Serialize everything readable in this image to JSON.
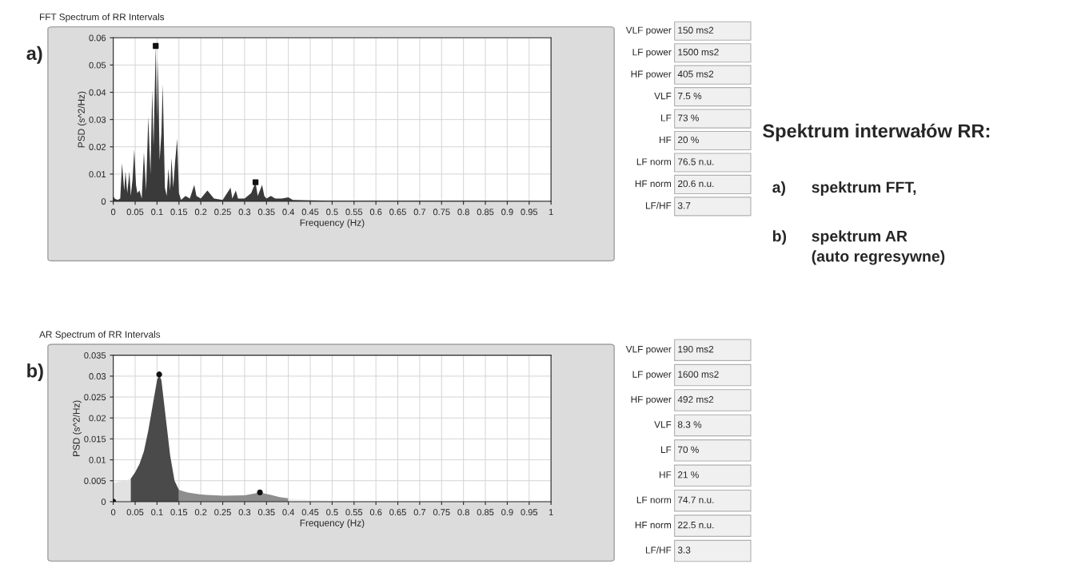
{
  "chart_data": [
    {
      "type": "area",
      "title": "FFT Spectrum of RR Intervals",
      "xlabel": "Frequency (Hz)",
      "ylabel": "PSD (s^2/Hz)",
      "annotations": [
        "a)"
      ],
      "xlim": [
        0,
        1
      ],
      "ylim": [
        0,
        0.06
      ],
      "grid": true,
      "xticks": [
        0,
        0.05,
        0.1,
        0.15,
        0.2,
        0.25,
        0.3,
        0.35,
        0.4,
        0.45,
        0.5,
        0.55,
        0.6,
        0.65,
        0.7,
        0.75,
        0.8,
        0.85,
        0.9,
        0.95,
        1
      ],
      "yticks": [
        0,
        0.01,
        0.02,
        0.03,
        0.04,
        0.05,
        0.06
      ],
      "series": [
        {
          "type": "area",
          "color": "#3a3a3a",
          "x": [
            0,
            0.003,
            0.01,
            0.016,
            0.02,
            0.025,
            0.028,
            0.032,
            0.037,
            0.04,
            0.044,
            0.048,
            0.052,
            0.055,
            0.06,
            0.065,
            0.07,
            0.075,
            0.08,
            0.085,
            0.089,
            0.092,
            0.097,
            0.1,
            0.102,
            0.106,
            0.11,
            0.113,
            0.118,
            0.122,
            0.126,
            0.13,
            0.133,
            0.137,
            0.141,
            0.146,
            0.15,
            0.155,
            0.165,
            0.175,
            0.185,
            0.19,
            0.2,
            0.215,
            0.22,
            0.23,
            0.25,
            0.268,
            0.272,
            0.28,
            0.285,
            0.3,
            0.315,
            0.325,
            0.33,
            0.34,
            0.345,
            0.35,
            0.36,
            0.37,
            0.385,
            0.4,
            0.41,
            0.45,
            0.5,
            0.6,
            0.8,
            1
          ],
          "values": [
            0.002,
            0.001,
            0.0005,
            0.001,
            0.014,
            0.004,
            0.011,
            0.003,
            0.011,
            0.002,
            0.008,
            0.019,
            0.006,
            0.003,
            0.004,
            0.001,
            0.018,
            0.004,
            0.031,
            0.01,
            0.041,
            0.02,
            0.057,
            0.03,
            0.052,
            0.015,
            0.025,
            0.043,
            0.005,
            0.002,
            0.012,
            0.004,
            0.016,
            0.005,
            0.014,
            0.023,
            0.003,
            0.0005,
            0.002,
            0.001,
            0.006,
            0.002,
            0.001,
            0.004,
            0.003,
            0.001,
            0.0005,
            0.005,
            0.001,
            0.004,
            0.001,
            0.001,
            0.003,
            0.007,
            0.002,
            0.006,
            0.002,
            0.001,
            0.002,
            0.001,
            0.001,
            0.0015,
            0.0005,
            0.0004,
            0.0002,
            0.0002,
            0.0002,
            0.0001
          ]
        },
        {
          "type": "scatter",
          "color": "#111111",
          "marker": "square",
          "x": [
            0.097,
            0.325
          ],
          "values": [
            0.057,
            0.007
          ]
        }
      ]
    },
    {
      "type": "other",
      "annotations": [
        "VLF power",
        "150 ms2",
        "LF power",
        "1500 ms2",
        "HF power",
        "405 ms2",
        "VLF",
        "7.5 %",
        "LF",
        "73 %",
        "HF",
        "20 %",
        "LF norm",
        "76.5 n.u.",
        "HF norm",
        "20.6 n.u.",
        "LF/HF",
        "3.7"
      ]
    },
    {
      "type": "area",
      "title": "AR Spectrum of RR Intervals",
      "xlabel": "Frequency (Hz)",
      "ylabel": "PSD (s^2/Hz)",
      "annotations": [
        "b)"
      ],
      "xlim": [
        0,
        1
      ],
      "ylim": [
        0,
        0.035
      ],
      "grid": true,
      "xticks": [
        0,
        0.05,
        0.1,
        0.15,
        0.2,
        0.25,
        0.3,
        0.35,
        0.4,
        0.45,
        0.5,
        0.55,
        0.6,
        0.65,
        0.7,
        0.75,
        0.8,
        0.85,
        0.9,
        0.95,
        1
      ],
      "yticks": [
        0,
        0.005,
        0.01,
        0.015,
        0.02,
        0.025,
        0.03,
        0.035
      ],
      "series": [
        {
          "type": "area",
          "color": "#e2e2e2",
          "x": [
            0,
            0.01,
            0.03,
            0.04
          ],
          "values": [
            0.0044,
            0.0047,
            0.0051,
            0.0055
          ]
        },
        {
          "type": "area",
          "color": "#4a4a4a",
          "x": [
            0.04,
            0.05,
            0.06,
            0.07,
            0.08,
            0.09,
            0.1,
            0.105,
            0.11,
            0.12,
            0.13,
            0.14,
            0.15
          ],
          "values": [
            0.0055,
            0.007,
            0.009,
            0.012,
            0.017,
            0.023,
            0.029,
            0.0304,
            0.029,
            0.02,
            0.011,
            0.005,
            0.0028
          ]
        },
        {
          "type": "area",
          "color": "#8e8e8e",
          "x": [
            0.15,
            0.17,
            0.2,
            0.25,
            0.3,
            0.335,
            0.36,
            0.38,
            0.4
          ],
          "values": [
            0.0028,
            0.0022,
            0.0017,
            0.0014,
            0.0015,
            0.0022,
            0.0016,
            0.0011,
            0.0008
          ]
        },
        {
          "type": "area",
          "color": "#f2f2f2",
          "x": [
            0.4,
            0.45,
            0.5,
            0.55,
            1
          ],
          "values": [
            0.0008,
            0.0004,
            0.0002,
            0.0001,
            0.0001
          ]
        },
        {
          "type": "scatter",
          "color": "#111111",
          "marker": "circle",
          "x": [
            0,
            0.105,
            0.335
          ],
          "values": [
            0,
            0.0304,
            0.0022
          ]
        }
      ]
    },
    {
      "type": "other",
      "annotations": [
        "VLF power",
        "190 ms2",
        "LF power",
        "1600 ms2",
        "HF power",
        "492 ms2",
        "VLF",
        "8.3 %",
        "LF",
        "70 %",
        "HF",
        "21 %",
        "LF norm",
        "74.7 n.u.",
        "HF norm",
        "22.5 n.u.",
        "LF/HF",
        "3.3"
      ]
    },
    {
      "type": "other",
      "title": "Spektrum interwałów RR:",
      "annotations": [
        "a)",
        "spektrum FFT,",
        "b)",
        "spektrum AR\n(auto regresywne)"
      ]
    }
  ]
}
